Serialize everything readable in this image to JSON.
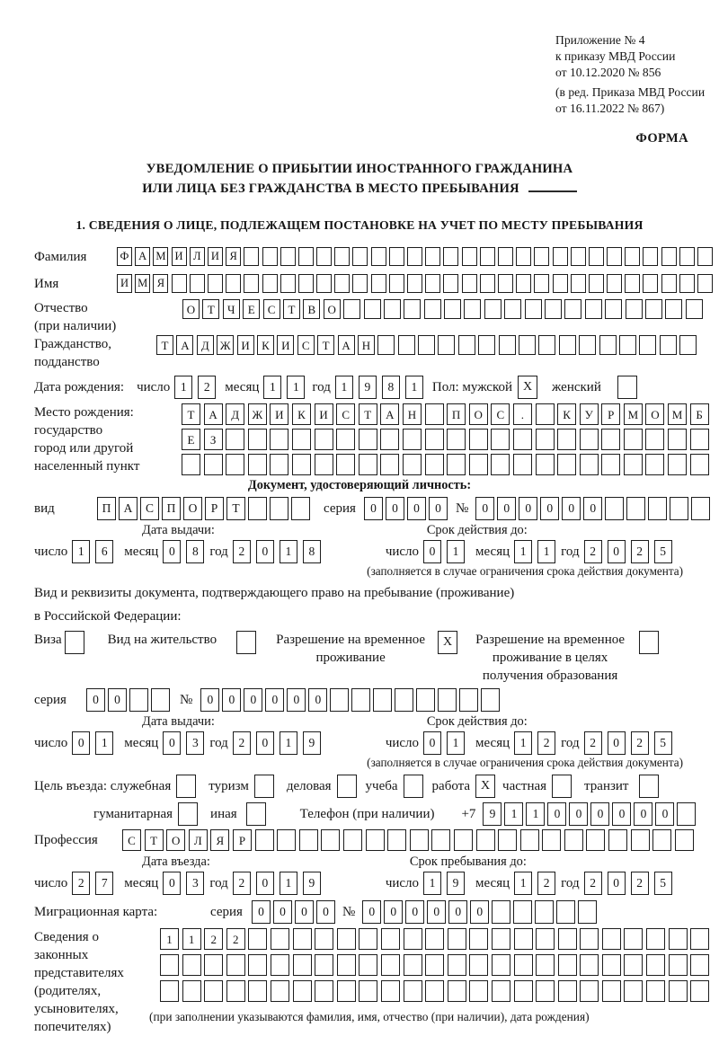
{
  "header": {
    "annex_line1": "Приложение № 4",
    "annex_line2": "к приказу МВД России",
    "annex_line3": "от 10.12.2020 № 856",
    "annex_note1": "(в ред. Приказа МВД России",
    "annex_note2": "от 16.11.2022 № 867)",
    "form_label": "ФОРМА"
  },
  "title": {
    "line1": "УВЕДОМЛЕНИЕ О ПРИБЫТИИ ИНОСТРАННОГО ГРАЖДАНИНА",
    "line2": "ИЛИ ЛИЦА БЕЗ ГРАЖДАНСТВА В МЕСТО ПРЕБЫВАНИЯ"
  },
  "section1": {
    "heading": "1. СВЕДЕНИЯ О ЛИЦЕ, ПОДЛЕЖАЩЕМ ПОСТАНОВКЕ НА УЧЕТ ПО МЕСТУ ПРЕБЫВАНИЯ"
  },
  "date_labels": {
    "day": "число",
    "month": "месяц",
    "year": "год"
  },
  "person": {
    "surname": {
      "label": "Фамилия",
      "row": {
        "value": "ФАМИЛИЯ",
        "cells": 33
      }
    },
    "given_name": {
      "label": "Имя",
      "row": {
        "value": "ИМЯ",
        "cells": 33
      }
    },
    "patronymic": {
      "label1": "Отчество",
      "label2": "(при наличии)",
      "row": {
        "value": "ОТЧЕСТВО",
        "cells": 26
      }
    },
    "citizenship": {
      "label1": "Гражданство,",
      "label2": "подданство",
      "row": {
        "value": "ТАДЖИКИСТАН",
        "cells": 27
      }
    },
    "birth_date": {
      "label": "Дата рождения:",
      "day": {
        "value": "12",
        "cells": 2
      },
      "month": {
        "value": "11",
        "cells": 2
      },
      "year": {
        "value": "1981",
        "cells": 4
      },
      "sex_label": "Пол: мужской",
      "male_box": {
        "value": "X",
        "cells": 1
      },
      "female_label": "женский",
      "female_box": {
        "value": "",
        "cells": 1
      }
    },
    "birth_place": {
      "label1": "Место рождения:",
      "label2": "государство",
      "label3": "город или другой",
      "label4": "населенный пункт",
      "row1": {
        "value": "ТАДЖИКИСТАН ПОС. КУРМОМБ",
        "cells": 24
      },
      "row2": {
        "value": "ЕЗ",
        "cells": 24
      },
      "row3": {
        "value": "",
        "cells": 24
      }
    }
  },
  "identity_doc": {
    "section_title": "Документ, удостоверяющий личность:",
    "kind_label": "вид",
    "kind": {
      "value": "ПАСПОРТ",
      "cells": 10
    },
    "series_label": "серия",
    "series": {
      "value": "0000",
      "cells": 4
    },
    "number_label": "№",
    "number": {
      "value": "000000",
      "cells": 11
    },
    "issue_title": "Дата выдачи:",
    "issue_day": {
      "value": "16",
      "cells": 2
    },
    "issue_month": {
      "value": "08",
      "cells": 2
    },
    "issue_year": {
      "value": "2018",
      "cells": 4
    },
    "valid_title": "Срок действия до:",
    "valid_day": {
      "value": "01",
      "cells": 2
    },
    "valid_month": {
      "value": "11",
      "cells": 2
    },
    "valid_year": {
      "value": "2025",
      "cells": 4
    },
    "note": "(заполняется в случае ограничения срока действия документа)"
  },
  "residence_doc": {
    "intro_line1": "Вид и реквизиты документа, подтверждающего право на пребывание (проживание)",
    "intro_line2": "в Российской Федерации:",
    "opt_visa_label": "Виза",
    "opt_visa_box": {
      "value": "",
      "cells": 1
    },
    "opt_residence_label": "Вид на жительство",
    "opt_residence_box": {
      "value": "",
      "cells": 1
    },
    "opt_temp_label1": "Разрешение на временное",
    "opt_temp_label2": "проживание",
    "opt_temp_box": {
      "value": "X",
      "cells": 1
    },
    "opt_edu_label1": "Разрешение на временное",
    "opt_edu_label2": "проживание в целях",
    "opt_edu_label3": "получения образования",
    "opt_edu_box": {
      "value": "",
      "cells": 1
    },
    "series_label": "серия",
    "series": {
      "value": "00",
      "cells": 4
    },
    "number_label": "№",
    "number": {
      "value": "000000",
      "cells": 14
    },
    "issue_title": "Дата выдачи:",
    "issue_day": {
      "value": "01",
      "cells": 2
    },
    "issue_month": {
      "value": "03",
      "cells": 2
    },
    "issue_year": {
      "value": "2019",
      "cells": 4
    },
    "valid_title": "Срок действия до:",
    "valid_day": {
      "value": "01",
      "cells": 2
    },
    "valid_month": {
      "value": "12",
      "cells": 2
    },
    "valid_year": {
      "value": "2025",
      "cells": 4
    },
    "note": "(заполняется в случае ограничения срока действия документа)"
  },
  "visit": {
    "purpose_label": "Цель въезда: служебная",
    "opt_official_box": {
      "value": "",
      "cells": 1
    },
    "opt_tourism": "туризм",
    "opt_tourism_box": {
      "value": "",
      "cells": 1
    },
    "opt_business": "деловая",
    "opt_business_box": {
      "value": "",
      "cells": 1
    },
    "opt_study": "учеба",
    "opt_study_box": {
      "value": "",
      "cells": 1
    },
    "opt_work": "работа",
    "opt_work_box": {
      "value": "X",
      "cells": 1
    },
    "opt_private": "частная",
    "opt_private_box": {
      "value": "",
      "cells": 1
    },
    "opt_transit": "транзит",
    "opt_transit_box": {
      "value": "",
      "cells": 1
    },
    "opt_humanitarian": "гуманитарная",
    "opt_humanitarian_box": {
      "value": "",
      "cells": 1
    },
    "opt_other": "иная",
    "opt_other_box": {
      "value": "",
      "cells": 1
    },
    "phone_label": "Телефон (при наличии)",
    "phone_prefix": "+7",
    "phone": {
      "value": "911000000",
      "cells": 10
    },
    "profession_label": "Профессия",
    "profession": {
      "value": "СТОЛЯР",
      "cells": 26
    },
    "entry_title": "Дата въезда:",
    "entry_day": {
      "value": "27",
      "cells": 2
    },
    "entry_month": {
      "value": "03",
      "cells": 2
    },
    "entry_year": {
      "value": "2019",
      "cells": 4
    },
    "stay_title": "Срок пребывания до:",
    "stay_day": {
      "value": "19",
      "cells": 2
    },
    "stay_month": {
      "value": "12",
      "cells": 2
    },
    "stay_year": {
      "value": "2025",
      "cells": 4
    },
    "migration_label": "Миграционная карта:",
    "migration_series_label": "серия",
    "migration_series": {
      "value": "0000",
      "cells": 4
    },
    "migration_number_label": "№",
    "migration_number": {
      "value": "000000",
      "cells": 11
    }
  },
  "representatives": {
    "label1": "Сведения о",
    "label2": "законных",
    "label3": "представителях",
    "label4": "(родителях,",
    "label5": "усыновителях,",
    "label6": "попечителях)",
    "row1": {
      "value": "1122",
      "cells": 25
    },
    "row2": {
      "value": "",
      "cells": 25
    },
    "row3": {
      "value": "",
      "cells": 25
    },
    "note": "(при заполнении указываются фамилия, имя, отчество (при наличии), дата рождения)"
  }
}
